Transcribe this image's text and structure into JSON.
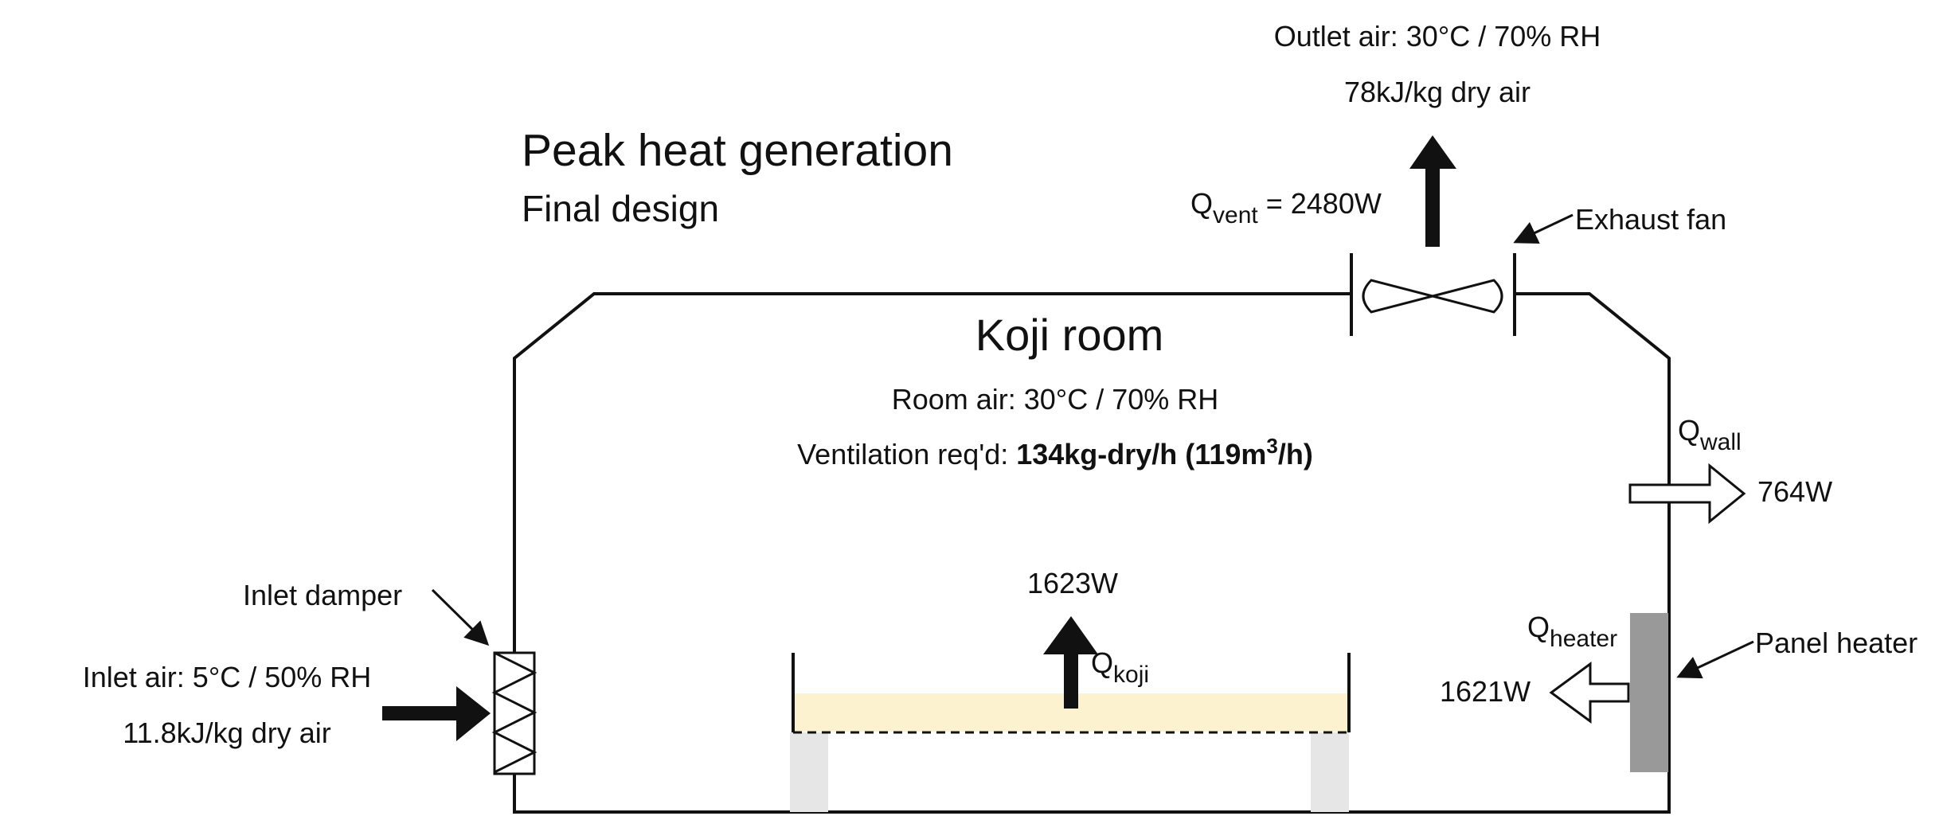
{
  "title": "Peak heat generation",
  "subtitle": "Final design",
  "room": {
    "name": "Koji room",
    "air": "Room air: 30°C / 70% RH",
    "ventilation_prefix": "Ventilation req'd: ",
    "ventilation_value_a": "134kg-dry/h (119m",
    "ventilation_sup": "3",
    "ventilation_value_b": "/h)"
  },
  "outlet": {
    "air": "Outlet air: 30°C / 70% RH",
    "enthalpy": "78kJ/kg dry air",
    "q_symbol": "Q",
    "q_sub": "vent",
    "q_value": " = 2480W",
    "fan_label": "Exhaust fan"
  },
  "wall": {
    "q_symbol": "Q",
    "q_sub": "wall",
    "value": "764W"
  },
  "heater": {
    "q_symbol": "Q",
    "q_sub": "heater",
    "value": "1621W",
    "label": "Panel heater",
    "color": "#999999"
  },
  "koji": {
    "q_symbol": "Q",
    "q_sub": "koji",
    "value": "1623W",
    "bed_color": "#fdf2d0",
    "leg_color": "#e6e6e6"
  },
  "inlet": {
    "damper_label": "Inlet damper",
    "air": "Inlet air: 5°C / 50% RH",
    "enthalpy": "11.8kJ/kg dry air"
  }
}
